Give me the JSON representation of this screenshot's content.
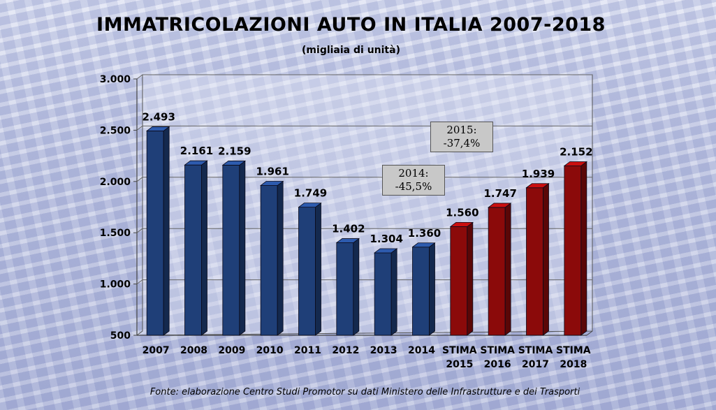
{
  "chart_data": {
    "type": "bar",
    "title": "IMMATRICOLAZIONI AUTO IN ITALIA 2007-2018",
    "subtitle": "(migliaia di unità)",
    "categories": [
      "2007",
      "2008",
      "2009",
      "2010",
      "2011",
      "2012",
      "2013",
      "2014",
      "STIMA\n2015",
      "STIMA\n2016",
      "STIMA\n2017",
      "STIMA\n2018"
    ],
    "values": [
      2493,
      2161,
      2159,
      1961,
      1749,
      1402,
      1304,
      1360,
      1560,
      1747,
      1939,
      2152
    ],
    "value_labels": [
      "2.493",
      "2.161",
      "2.159",
      "1.961",
      "1.749",
      "1.402",
      "1.304",
      "1.360",
      "1.560",
      "1.747",
      "1.939",
      "2.152"
    ],
    "ylim": [
      500,
      3000
    ],
    "yticks": [
      500,
      1000,
      1500,
      2000,
      2500,
      3000
    ],
    "ytick_labels": [
      "500",
      "1.000",
      "1.500",
      "2.000",
      "2.500",
      "3.000"
    ],
    "grid": true,
    "annotations": [
      {
        "label": "annotation-2014",
        "lines": [
          "2014:",
          "-45,5%"
        ]
      },
      {
        "label": "annotation-2015",
        "lines": [
          "2015:",
          "-37,4%"
        ]
      }
    ],
    "colors": {
      "actual": "#1f3f78",
      "estimate": "#8b0a0a"
    }
  },
  "source_text": "Fonte: elaborazione Centro Studi Promotor  su dati Ministero delle Infrastrutture e dei Trasporti"
}
